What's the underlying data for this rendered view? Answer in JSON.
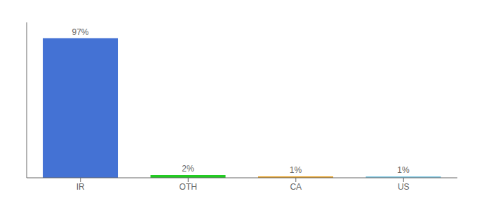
{
  "chart_data": {
    "type": "bar",
    "categories": [
      "IR",
      "OTH",
      "CA",
      "US"
    ],
    "values": [
      97,
      2,
      1,
      1
    ],
    "colors": [
      "#4472d4",
      "#22cc22",
      "#e8a020",
      "#7ec8e3"
    ],
    "value_labels": [
      "97%",
      "2%",
      "1%",
      "1%"
    ],
    "data_labels": true,
    "ylim": [
      0,
      108
    ],
    "tick_labels": "x"
  }
}
